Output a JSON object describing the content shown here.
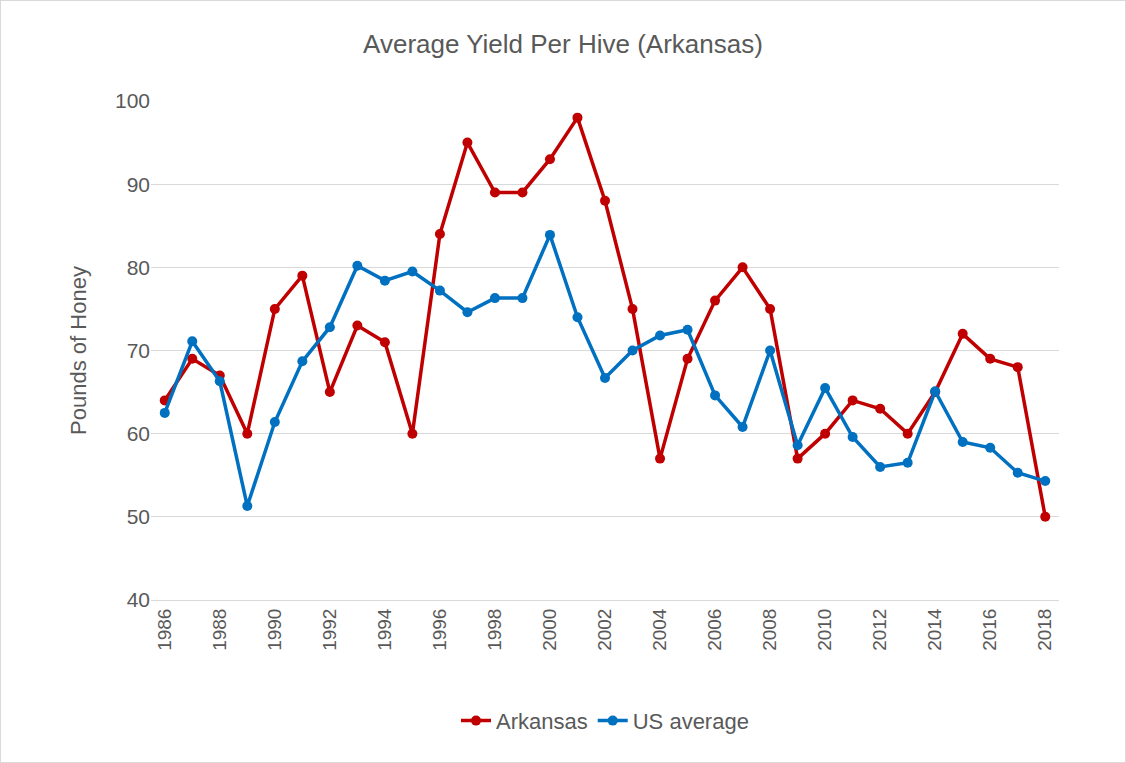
{
  "chart_data": {
    "type": "line",
    "title": "Average Yield Per Hive (Arkansas)",
    "y_label": "Pounds of Honey",
    "x": [
      1986,
      1987,
      1988,
      1989,
      1990,
      1991,
      1992,
      1993,
      1994,
      1995,
      1996,
      1997,
      1998,
      1999,
      2000,
      2001,
      2002,
      2003,
      2004,
      2005,
      2006,
      2007,
      2008,
      2009,
      2010,
      2011,
      2012,
      2013,
      2014,
      2015,
      2016,
      2017,
      2018
    ],
    "series": [
      {
        "name": "Arkansas",
        "color": "#c00000",
        "marker": "circle",
        "line_style": "solid",
        "values": [
          64,
          69,
          67,
          60,
          75,
          79,
          65,
          73,
          71,
          60,
          84,
          95,
          89,
          89,
          93,
          98,
          88,
          75,
          57,
          69,
          76,
          80,
          75,
          57,
          60,
          64,
          63,
          60,
          65,
          72,
          69,
          68,
          50
        ]
      },
      {
        "name": "US average",
        "color": "#0070c0",
        "marker": "circle",
        "line_style": "solid",
        "values": [
          62.5,
          71.1,
          66.3,
          51.3,
          61.4,
          68.7,
          72.8,
          80.2,
          78.4,
          79.5,
          77.2,
          74.6,
          76.3,
          76.3,
          83.9,
          74,
          66.7,
          70,
          71.8,
          72.5,
          64.6,
          60.8,
          70,
          58.6,
          65.5,
          59.6,
          56,
          56.5,
          65.1,
          59,
          58.3,
          55.3,
          54.3
        ]
      }
    ],
    "xlim": [
      1985.5,
      2018.5
    ],
    "xticks": [
      1986,
      1988,
      1990,
      1992,
      1994,
      1996,
      1998,
      2000,
      2002,
      2004,
      2006,
      2008,
      2010,
      2012,
      2014,
      2016,
      2018
    ],
    "ylim": [
      40,
      100
    ],
    "yticks": [
      40,
      50,
      60,
      70,
      80,
      90,
      100
    ],
    "grid": true,
    "legend": "bottom"
  }
}
